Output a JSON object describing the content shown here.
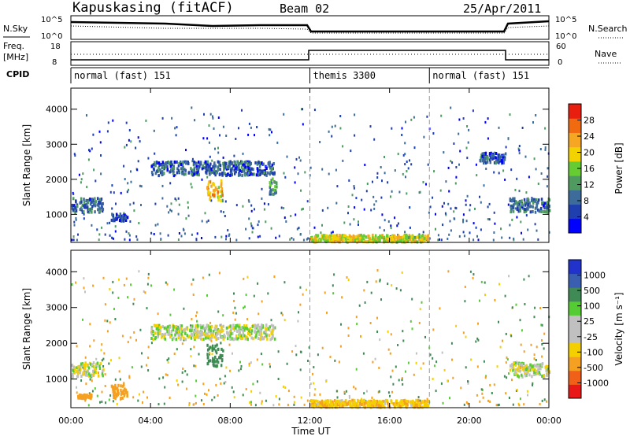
{
  "header": {
    "station": "Kapuskasing (fitACF)",
    "beam": "Beam 02",
    "date": "25/Apr/2011"
  },
  "strips": {
    "noise": {
      "left_label": "N.Sky",
      "right_label": "N.Search",
      "left_ticks": [
        "10^5",
        "10^0"
      ],
      "right_ticks": [
        "10^5",
        "10^0"
      ]
    },
    "freq": {
      "left_label": "Freq.",
      "left_unit": "[MHz]",
      "right_label": "Nave",
      "left_ticks": [
        "18",
        "8"
      ],
      "right_ticks": [
        "60",
        "0"
      ]
    },
    "cpid": {
      "label": "CPID",
      "segments": [
        {
          "name": "normal (fast) 151",
          "start_hour": 0,
          "end_hour": 12
        },
        {
          "name": "themis 3300",
          "start_hour": 12,
          "end_hour": 18
        },
        {
          "name": "normal (fast) 151",
          "start_hour": 18,
          "end_hour": 24
        }
      ]
    }
  },
  "colors": {
    "power_scale": [
      "#0000ff",
      "#1f3fae",
      "#3d6b9a",
      "#4f9a5e",
      "#66cc33",
      "#f2d200",
      "#f5a623",
      "#f06a0f",
      "#e81e0e"
    ],
    "velocity_scale": [
      "#2233cc",
      "#3a5fb0",
      "#3f8a55",
      "#55cc33",
      "#c0c0c0",
      "#c0c0c0",
      "#f4d000",
      "#f5a020",
      "#f06018",
      "#e81818"
    ]
  },
  "chart_data": [
    {
      "type": "heatmap",
      "panel": "power",
      "title": "Power",
      "xlabel": "Time UT",
      "ylabel": "Slant Range [km]",
      "colorbar_label": "Power [dB]",
      "colorbar_ticks": [
        "4",
        "8",
        "12",
        "16",
        "20",
        "24",
        "28"
      ],
      "colorbar_range": [
        0,
        30
      ],
      "xlim": [
        0,
        24
      ],
      "ylim": [
        200,
        4600
      ],
      "x_ticks": [
        "00:00",
        "04:00",
        "08:00",
        "12:00",
        "16:00",
        "20:00",
        "00:00"
      ],
      "y_ticks": [
        "1000",
        "2000",
        "3000",
        "4000"
      ],
      "echo_regions": [
        {
          "t0": 0.0,
          "t1": 1.6,
          "r0": 1100,
          "r1": 1500,
          "level": 8
        },
        {
          "t0": 2.0,
          "t1": 2.8,
          "r0": 850,
          "r1": 1050,
          "level": 6
        },
        {
          "t0": 4.0,
          "t1": 10.2,
          "r0": 2150,
          "r1": 2550,
          "level": 7
        },
        {
          "t0": 6.8,
          "t1": 7.6,
          "r0": 1400,
          "r1": 2000,
          "level": 20
        },
        {
          "t0": 9.9,
          "t1": 10.3,
          "r0": 1600,
          "r1": 2100,
          "level": 10
        },
        {
          "t0": 12.0,
          "t1": 17.9,
          "r0": 250,
          "r1": 450,
          "level": 18
        },
        {
          "t0": 22.0,
          "t1": 24.0,
          "r0": 1100,
          "r1": 1500,
          "level": 8
        },
        {
          "t0": 20.5,
          "t1": 21.8,
          "r0": 2500,
          "r1": 2800,
          "level": 6
        }
      ]
    },
    {
      "type": "heatmap",
      "panel": "velocity",
      "title": "Velocity",
      "xlabel": "Time UT",
      "ylabel": "Slant Range [km]",
      "colorbar_label": "Velocity [m s^-1]",
      "colorbar_ticks": [
        "1000",
        "500",
        "100",
        "25",
        "-25",
        "-100",
        "-500",
        "-1000"
      ],
      "xlim": [
        0,
        24
      ],
      "ylim": [
        200,
        4600
      ],
      "x_ticks": [
        "00:00",
        "04:00",
        "08:00",
        "12:00",
        "16:00",
        "20:00",
        "00:00"
      ],
      "y_ticks": [
        "1000",
        "2000",
        "3000",
        "4000"
      ],
      "echo_regions": [
        {
          "t0": 0.0,
          "t1": 1.6,
          "r0": 1100,
          "r1": 1500,
          "level": 0
        },
        {
          "t0": 0.3,
          "t1": 1.0,
          "r0": 500,
          "r1": 600,
          "level": -300
        },
        {
          "t0": 2.0,
          "t1": 2.8,
          "r0": 500,
          "r1": 900,
          "level": -400
        },
        {
          "t0": 4.0,
          "t1": 10.2,
          "r0": 2150,
          "r1": 2550,
          "level": 0
        },
        {
          "t0": 6.8,
          "t1": 7.6,
          "r0": 1400,
          "r1": 2000,
          "level": 200
        },
        {
          "t0": 12.0,
          "t1": 17.9,
          "r0": 250,
          "r1": 450,
          "level": -80
        },
        {
          "t0": 22.0,
          "t1": 24.0,
          "r0": 1100,
          "r1": 1500,
          "level": 0
        }
      ]
    }
  ]
}
